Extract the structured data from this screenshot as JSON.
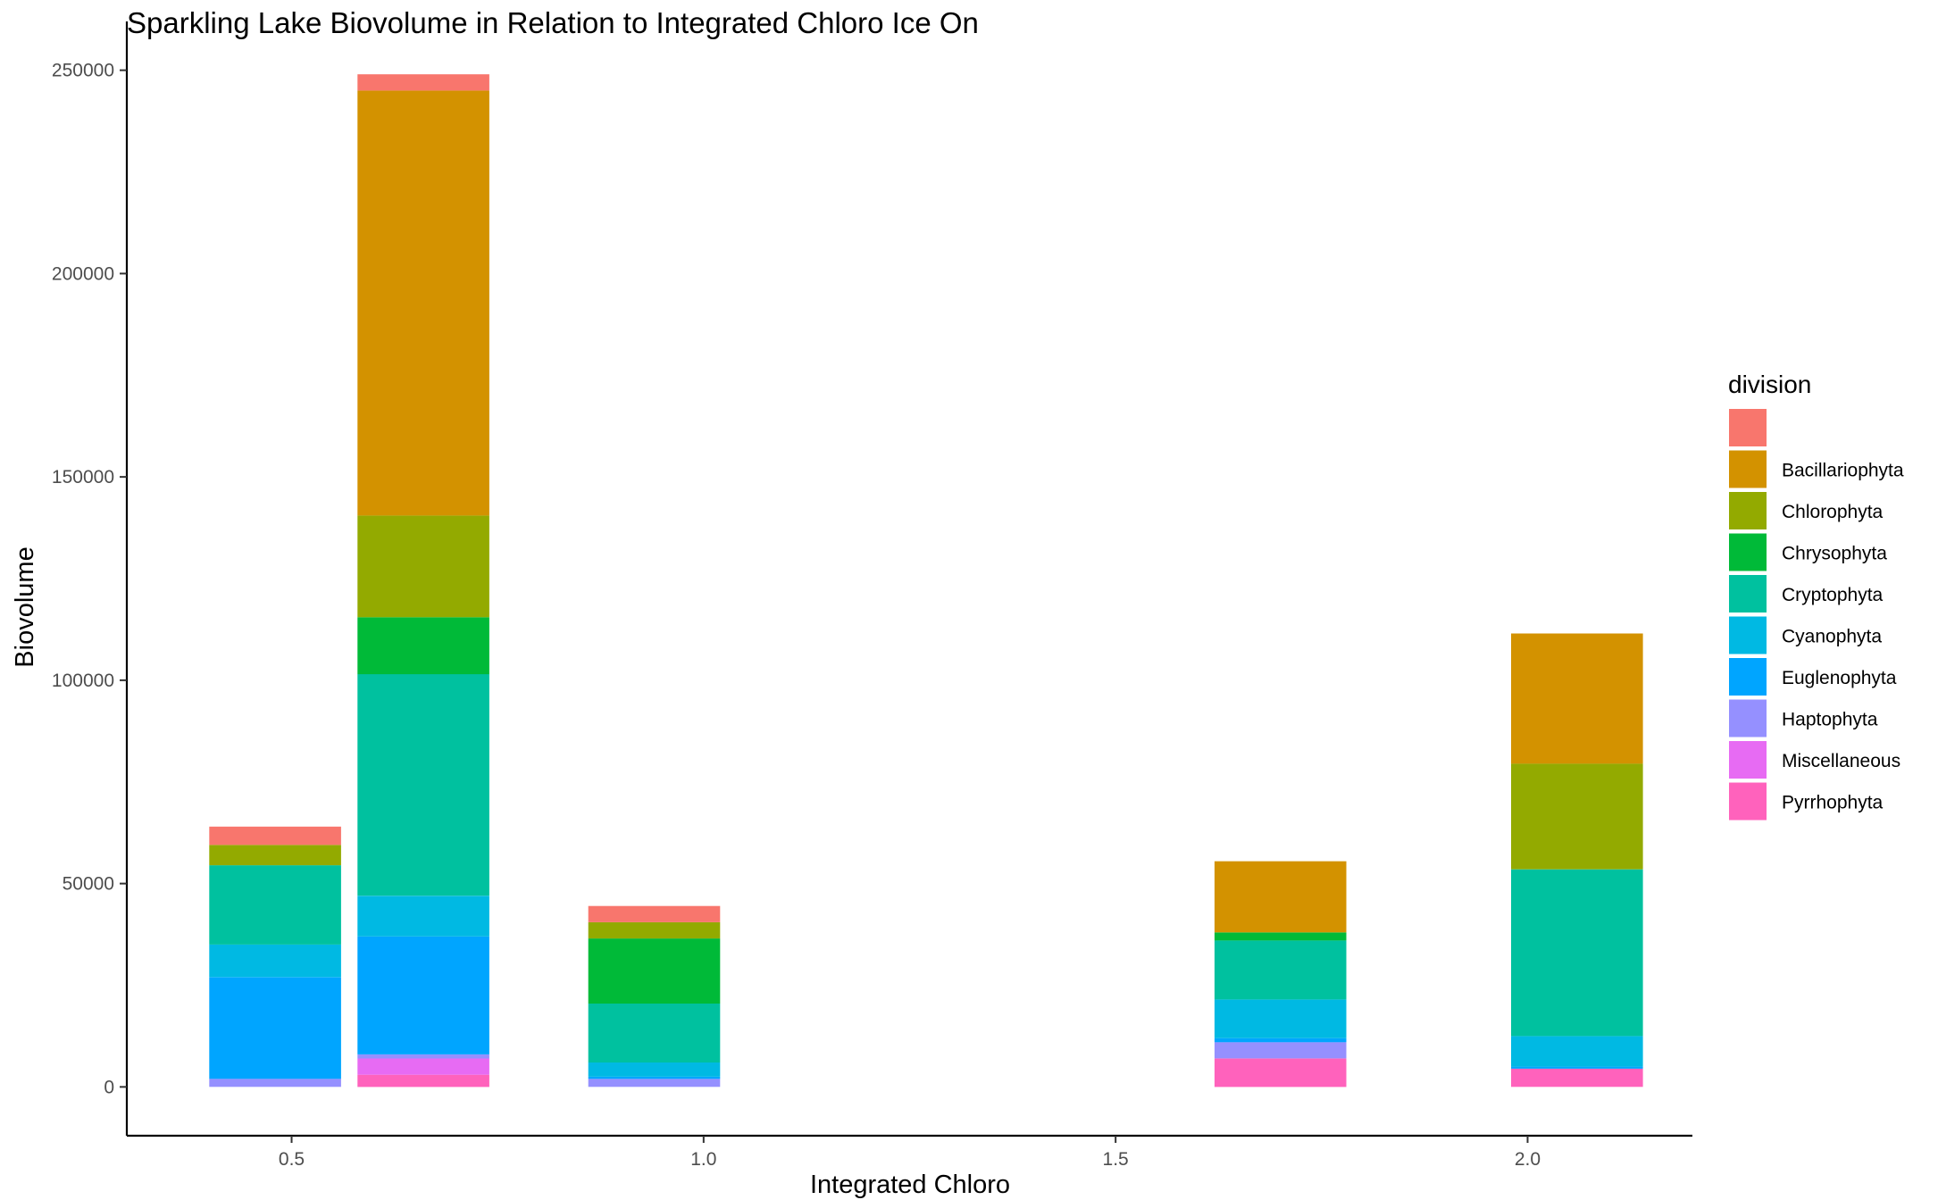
{
  "chart_data": {
    "type": "bar",
    "stacked": true,
    "title": "Sparkling Lake Biovolume in Relation to Integrated Chloro Ice On",
    "xlabel": "Integrated Chloro",
    "ylabel": "Biovolume",
    "xlim": [
      0.3,
      2.2
    ],
    "ylim": [
      -12000,
      262000
    ],
    "x_ticks": [
      0.5,
      1.0,
      1.5,
      2.0
    ],
    "x_tick_labels": [
      "0.5",
      "1.0",
      "1.5",
      "2.0"
    ],
    "y_ticks": [
      0,
      50000,
      100000,
      150000,
      200000,
      250000
    ],
    "y_tick_labels": [
      "0",
      "50000",
      "100000",
      "150000",
      "200000",
      "250000"
    ],
    "bar_width": 0.16,
    "grid": false,
    "legend": {
      "title": "division",
      "position": "right",
      "entries": [
        {
          "name": "",
          "color": "#F8766D"
        },
        {
          "name": "Bacillariophyta",
          "color": "#D39200"
        },
        {
          "name": "Chlorophyta",
          "color": "#93AA00"
        },
        {
          "name": "Chrysophyta",
          "color": "#00BA38"
        },
        {
          "name": "Cryptophyta",
          "color": "#00C19F"
        },
        {
          "name": "Cyanophyta",
          "color": "#00B9E3"
        },
        {
          "name": "Euglenophyta",
          "color": "#00A5FF"
        },
        {
          "name": "Haptophyta",
          "color": "#9590FF"
        },
        {
          "name": "Miscellaneous",
          "color": "#E76BF3"
        },
        {
          "name": "Pyrrhophyta",
          "color": "#FF62BC"
        }
      ]
    },
    "bars": [
      {
        "x": 0.48,
        "segments": [
          {
            "division": "Haptophyta",
            "value": 2000
          },
          {
            "division": "Euglenophyta",
            "value": 25000
          },
          {
            "division": "Cyanophyta",
            "value": 8000
          },
          {
            "division": "Cryptophyta",
            "value": 19500
          },
          {
            "division": "Chlorophyta",
            "value": 5000
          },
          {
            "division": "",
            "value": 4500
          }
        ]
      },
      {
        "x": 0.66,
        "segments": [
          {
            "division": "Pyrrhophyta",
            "value": 3000
          },
          {
            "division": "Miscellaneous",
            "value": 4000
          },
          {
            "division": "Haptophyta",
            "value": 1000
          },
          {
            "division": "Euglenophyta",
            "value": 29000
          },
          {
            "division": "Cyanophyta",
            "value": 10000
          },
          {
            "division": "Cryptophyta",
            "value": 54500
          },
          {
            "division": "Chrysophyta",
            "value": 14000
          },
          {
            "division": "Chlorophyta",
            "value": 25000
          },
          {
            "division": "Bacillariophyta",
            "value": 104500
          },
          {
            "division": "",
            "value": 4000
          }
        ]
      },
      {
        "x": 0.94,
        "segments": [
          {
            "division": "Haptophyta",
            "value": 2000
          },
          {
            "division": "Euglenophyta",
            "value": 500
          },
          {
            "division": "Cyanophyta",
            "value": 3500
          },
          {
            "division": "Cryptophyta",
            "value": 14500
          },
          {
            "division": "Chrysophyta",
            "value": 16000
          },
          {
            "division": "Chlorophyta",
            "value": 4000
          },
          {
            "division": "",
            "value": 4000
          }
        ]
      },
      {
        "x": 1.7,
        "segments": [
          {
            "division": "Pyrrhophyta",
            "value": 7000
          },
          {
            "division": "Haptophyta",
            "value": 4000
          },
          {
            "division": "Euglenophyta",
            "value": 1000
          },
          {
            "division": "Cyanophyta",
            "value": 9500
          },
          {
            "division": "Cryptophyta",
            "value": 14500
          },
          {
            "division": "Chrysophyta",
            "value": 2000
          },
          {
            "division": "Bacillariophyta",
            "value": 17500
          }
        ]
      },
      {
        "x": 2.06,
        "segments": [
          {
            "division": "Pyrrhophyta",
            "value": 4500
          },
          {
            "division": "Euglenophyta",
            "value": 500
          },
          {
            "division": "Cyanophyta",
            "value": 7500
          },
          {
            "division": "Cryptophyta",
            "value": 41000
          },
          {
            "division": "Chlorophyta",
            "value": 26000
          },
          {
            "division": "Bacillariophyta",
            "value": 32000
          }
        ]
      }
    ]
  }
}
